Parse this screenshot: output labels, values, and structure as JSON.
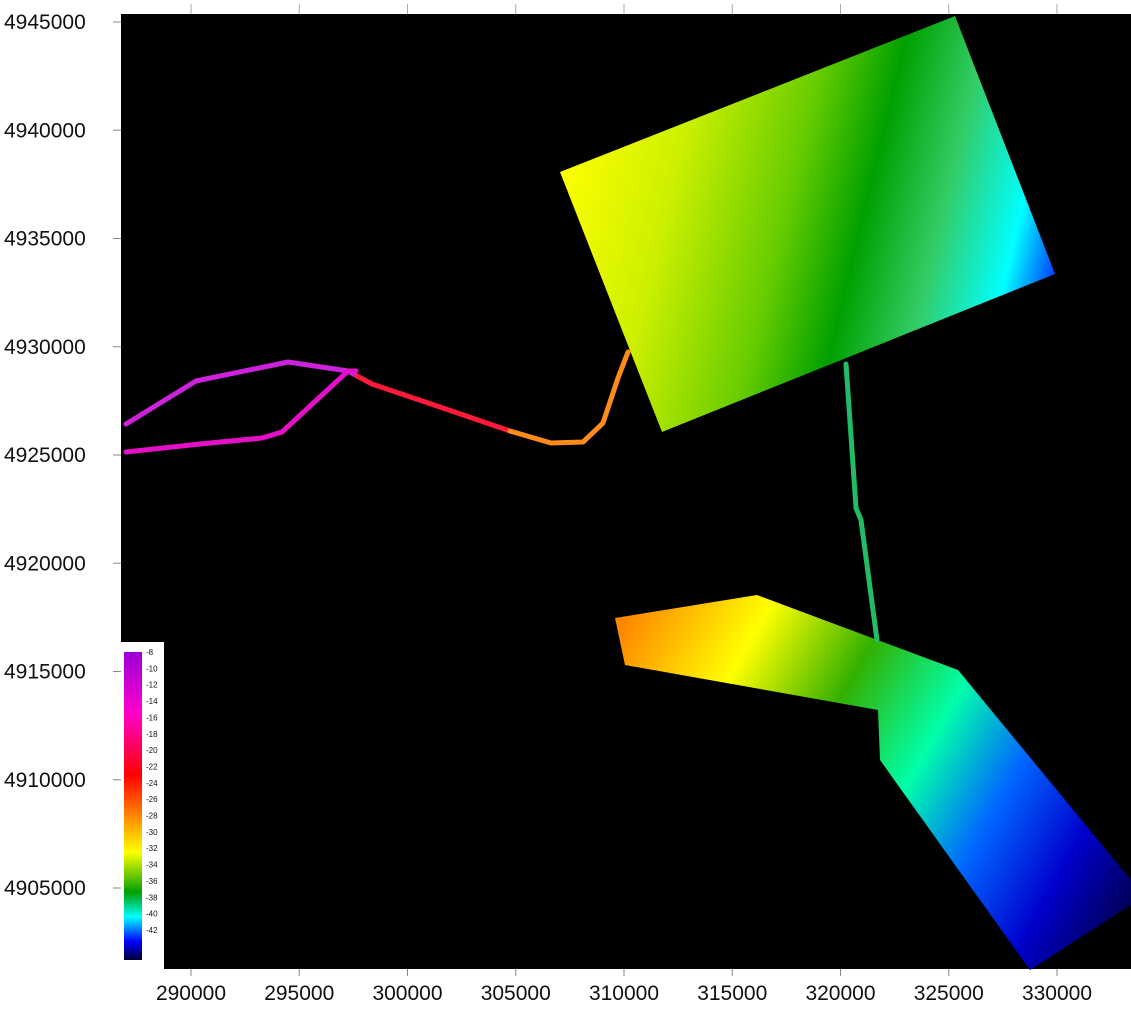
{
  "chart_data": {
    "type": "bathymetry-map",
    "x_ticks": [
      "290000",
      "295000",
      "300000",
      "305000",
      "310000",
      "315000",
      "320000",
      "325000",
      "330000"
    ],
    "y_ticks": [
      "4945000",
      "4940000",
      "4935000",
      "4930000",
      "4925000",
      "4920000",
      "4915000",
      "4910000",
      "4905000"
    ],
    "xlim": [
      287000,
      333000
    ],
    "ylim": [
      4901000,
      4945500
    ],
    "colorbar": {
      "labels": [
        "-8",
        "-10",
        "-12",
        "-14",
        "-16",
        "-18",
        "-20",
        "-22",
        "-24",
        "-26",
        "-28",
        "-30",
        "-32",
        "-34",
        "-36",
        "-38",
        "-40",
        "-42"
      ],
      "range": [
        -8,
        -44
      ]
    },
    "background_color": "#000000",
    "palette": [
      "#9b00d8",
      "#ff00cc",
      "#ff0000",
      "#ff9900",
      "#ffff00",
      "#00a000",
      "#00ffff",
      "#0000ff",
      "#000033"
    ]
  }
}
